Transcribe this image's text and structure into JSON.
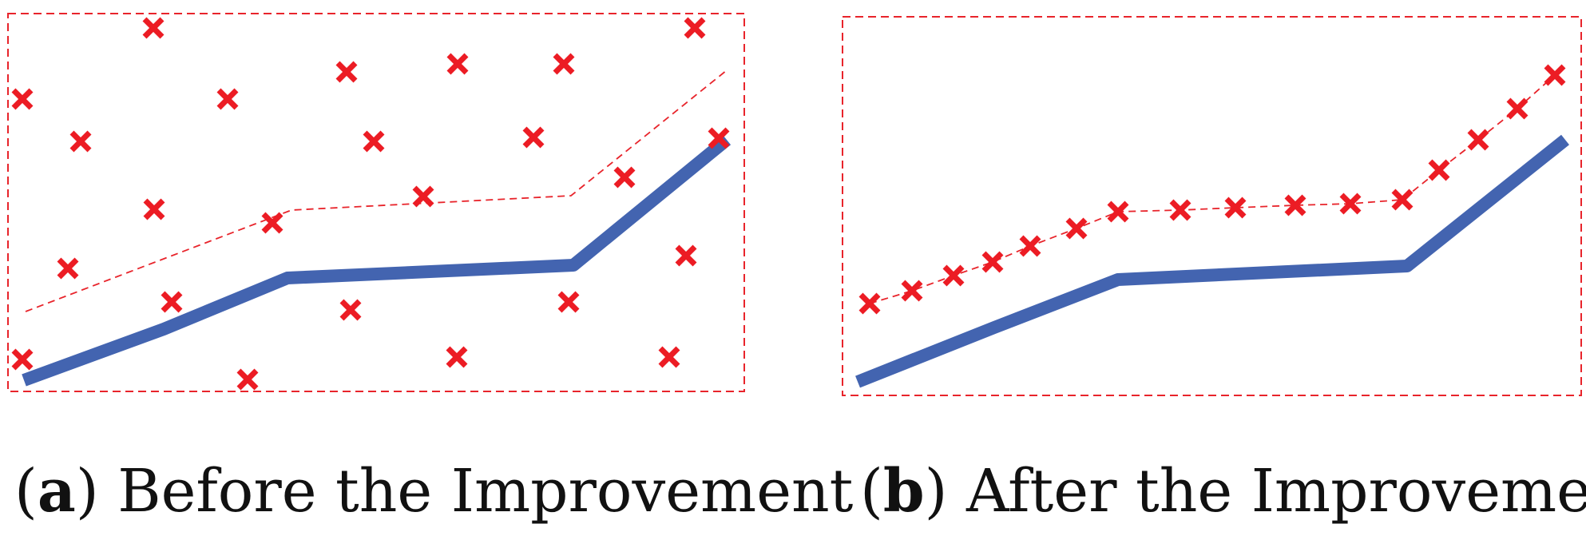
{
  "colors": {
    "frame": "#e8242b",
    "cross": "#ec1c24",
    "path": "#4364b0",
    "text": "#111111"
  },
  "icons": {
    "sample_point": "red-cross-icon"
  },
  "panels": [
    {
      "id": "a",
      "caption": {
        "open": "(",
        "letter": "a",
        "close": ")",
        "text": " Before the Improvement"
      }
    },
    {
      "id": "b",
      "caption": {
        "open": "(",
        "letter": "b",
        "close": ")",
        "text": " After the Improvement"
      }
    }
  ]
}
